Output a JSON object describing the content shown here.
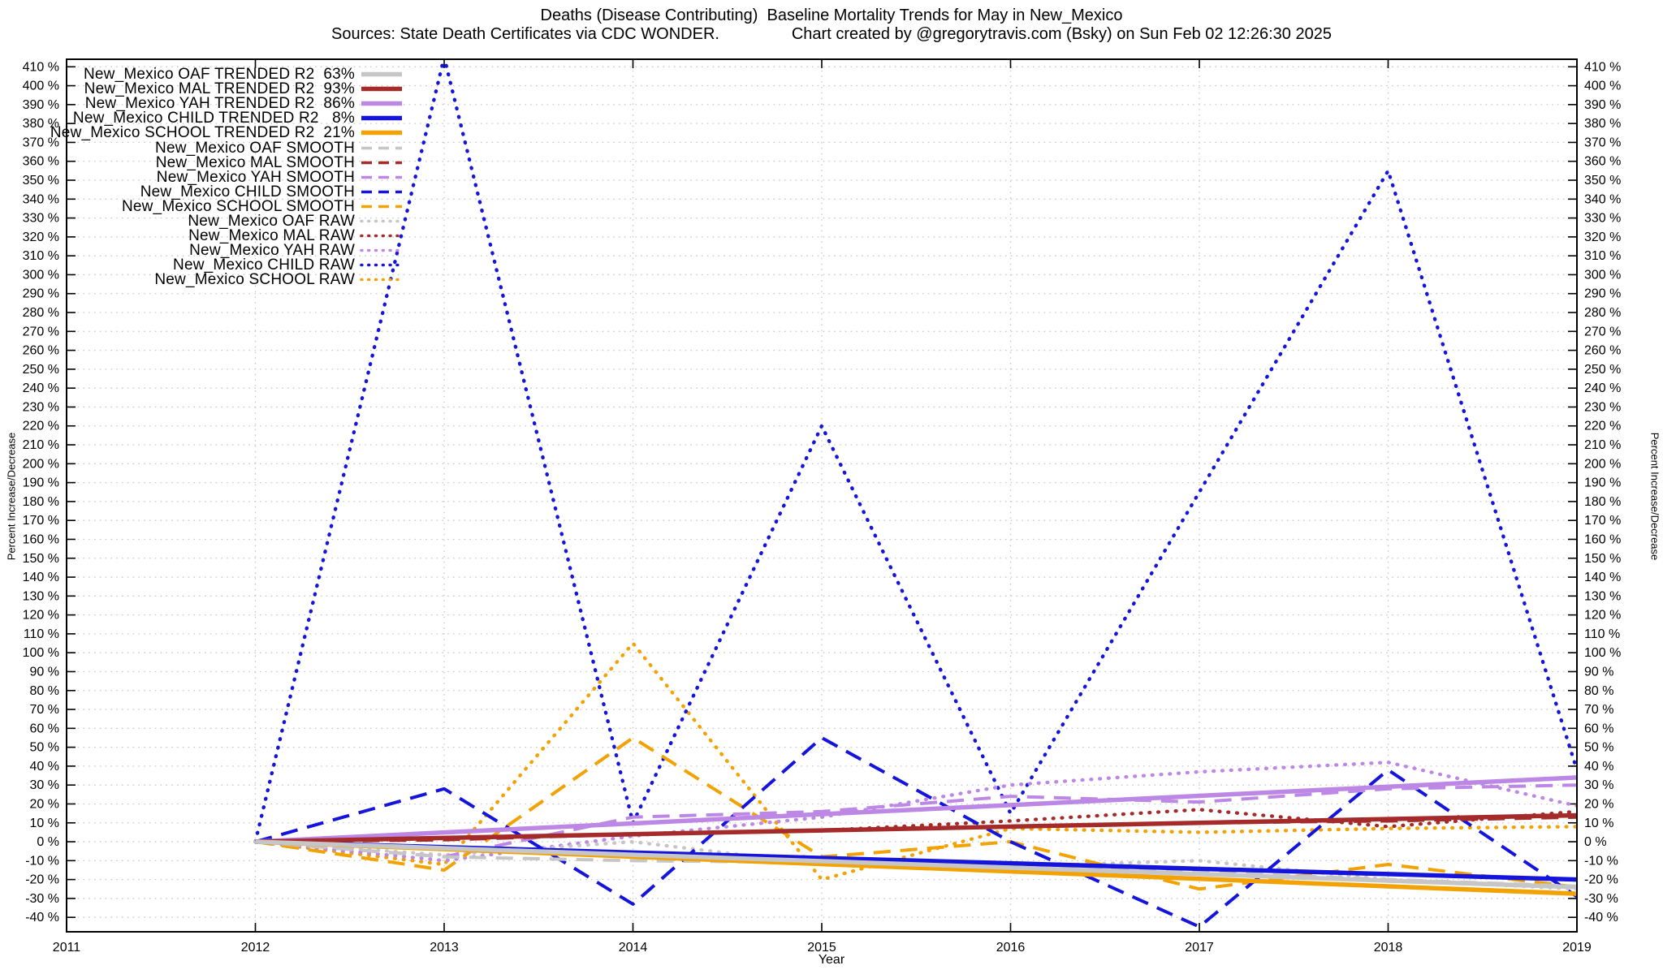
{
  "title": {
    "line1": "Deaths (Disease Contributing)  Baseline Mortality Trends for May in New_Mexico",
    "line2": "Sources: State Death Certificates via CDC WONDER.                Chart created by @gregorytravis.com (Bsky) on Sun Feb 02 12:26:30 2025"
  },
  "axes": {
    "x_label": "Year",
    "y_label_left": "Percent Increase/Decrease",
    "y_label_right": "Percent Increase/Decrease",
    "x_ticks": [
      "2011",
      "2012",
      "2013",
      "2014",
      "2015",
      "2016",
      "2017",
      "2018",
      "2019"
    ],
    "y_tick_max": 410,
    "y_tick_min": -40,
    "y_tick_step": 10,
    "y_tick_suffix": " %",
    "grid": true
  },
  "colors": {
    "gray": "#c6c6c6",
    "darkred": "#a52a2a",
    "purple": "#bd87e6",
    "blue": "#1414dd",
    "orange": "#f2a202",
    "gridline": "#c9c9c9",
    "border": "#000000"
  },
  "chart_data": {
    "type": "line",
    "x": [
      2012,
      2013,
      2014,
      2015,
      2016,
      2017,
      2018,
      2019
    ],
    "x_range": [
      2011,
      2019
    ],
    "y_range": [
      -47,
      414
    ],
    "legend_position": "top-left",
    "series": [
      {
        "name": "New_Mexico OAF TRENDED",
        "legend_label": "New_Mexico OAF TRENDED R2  63%",
        "r2": "63%",
        "color_key": "gray",
        "style": "solid",
        "values": [
          0,
          -3.4,
          -6.9,
          -10.3,
          -13.7,
          -17.1,
          -20.6,
          -24
        ]
      },
      {
        "name": "New_Mexico MAL TRENDED",
        "legend_label": "New_Mexico MAL TRENDED R2  93%",
        "r2": "93%",
        "color_key": "darkred",
        "style": "solid",
        "values": [
          0,
          2,
          4,
          6,
          8,
          10,
          12,
          14
        ]
      },
      {
        "name": "New_Mexico YAH TRENDED",
        "legend_label": "New_Mexico YAH TRENDED R2  86%",
        "r2": "86%",
        "color_key": "purple",
        "style": "solid",
        "values": [
          0,
          4.9,
          9.7,
          14.6,
          19.4,
          24.3,
          29.1,
          34
        ]
      },
      {
        "name": "New_Mexico CHILD TRENDED",
        "legend_label": "New_Mexico CHILD TRENDED R2   8%",
        "r2": "8%",
        "color_key": "blue",
        "style": "solid",
        "values": [
          0,
          -2.9,
          -5.7,
          -8.6,
          -11.4,
          -14.3,
          -17.1,
          -20
        ]
      },
      {
        "name": "New_Mexico SCHOOL TRENDED",
        "legend_label": "New_Mexico SCHOOL TRENDED R2  21%",
        "r2": "21%",
        "color_key": "orange",
        "style": "solid",
        "values": [
          0,
          -3.9,
          -7.9,
          -11.8,
          -15.7,
          -19.6,
          -23.6,
          -27.5
        ]
      },
      {
        "name": "New_Mexico OAF SMOOTH",
        "legend_label": "New_Mexico OAF SMOOTH",
        "color_key": "gray",
        "style": "dash",
        "values": [
          0,
          -8,
          -10,
          -11,
          -13,
          -16,
          -20,
          -23.5
        ]
      },
      {
        "name": "New_Mexico MAL SMOOTH",
        "legend_label": "New_Mexico MAL SMOOTH",
        "color_key": "darkred",
        "style": "dash",
        "values": [
          0,
          1,
          4,
          6,
          8,
          10,
          11,
          13
        ]
      },
      {
        "name": "New_Mexico YAH SMOOTH",
        "legend_label": "New_Mexico YAH SMOOTH",
        "color_key": "purple",
        "style": "dash",
        "values": [
          0,
          -8,
          13,
          16,
          24,
          21,
          28,
          30
        ]
      },
      {
        "name": "New_Mexico CHILD SMOOTH",
        "legend_label": "New_Mexico CHILD SMOOTH",
        "color_key": "blue",
        "style": "dash",
        "values": [
          0,
          28,
          -33,
          55,
          0,
          -45,
          38,
          -29
        ]
      },
      {
        "name": "New_Mexico SCHOOL SMOOTH",
        "legend_label": "New_Mexico SCHOOL SMOOTH",
        "color_key": "orange",
        "style": "dash",
        "values": [
          0,
          -15,
          55,
          -8,
          0,
          -25,
          -12,
          -24
        ]
      },
      {
        "name": "New_Mexico OAF RAW",
        "legend_label": "New_Mexico OAF RAW",
        "color_key": "gray",
        "style": "dot",
        "values": [
          0,
          -7,
          0,
          -12,
          -13,
          -10,
          -20,
          -25
        ]
      },
      {
        "name": "New_Mexico MAL RAW",
        "legend_label": "New_Mexico MAL RAW",
        "color_key": "darkred",
        "style": "dot",
        "values": [
          0,
          2,
          4,
          6,
          11,
          17,
          8,
          16
        ]
      },
      {
        "name": "New_Mexico YAH RAW",
        "legend_label": "New_Mexico YAH RAW",
        "color_key": "purple",
        "style": "dot",
        "values": [
          0,
          -10,
          3,
          13,
          30,
          37,
          42,
          19
        ]
      },
      {
        "name": "New_Mexico CHILD RAW",
        "legend_label": "New_Mexico CHILD RAW",
        "color_key": "blue",
        "style": "dot",
        "values": [
          0,
          415,
          10,
          220,
          15,
          185,
          355,
          38
        ]
      },
      {
        "name": "New_Mexico SCHOOL RAW",
        "legend_label": "New_Mexico SCHOOL RAW",
        "color_key": "orange",
        "style": "dot",
        "values": [
          0,
          -12,
          105,
          -20,
          7,
          5,
          7,
          8
        ]
      }
    ]
  }
}
